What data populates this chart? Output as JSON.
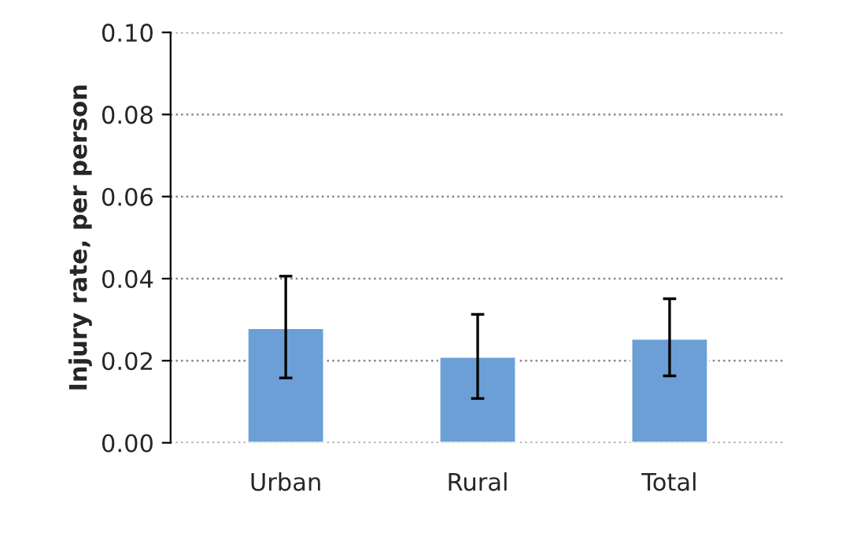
{
  "chart_data": {
    "type": "bar",
    "ylabel": "Injury rate, per person",
    "categories": [
      "Urban",
      "Rural",
      "Total"
    ],
    "values": [
      0.028,
      0.021,
      0.0254
    ],
    "errors": [
      [
        0.0158,
        0.0406
      ],
      [
        0.0108,
        0.0313
      ],
      [
        0.0163,
        0.0351
      ]
    ],
    "color": "#6c9fd6",
    "ylim": [
      0,
      0.1
    ],
    "yticks": [
      {
        "value": 0,
        "label": "0.00"
      },
      {
        "value": 0.02,
        "label": "0.02"
      },
      {
        "value": 0.04,
        "label": "0.04"
      },
      {
        "value": 0.06,
        "label": "0.06"
      },
      {
        "value": 0.08,
        "label": "0.08"
      },
      {
        "value": 0.1,
        "label": "0.10"
      }
    ],
    "grid": "y"
  }
}
